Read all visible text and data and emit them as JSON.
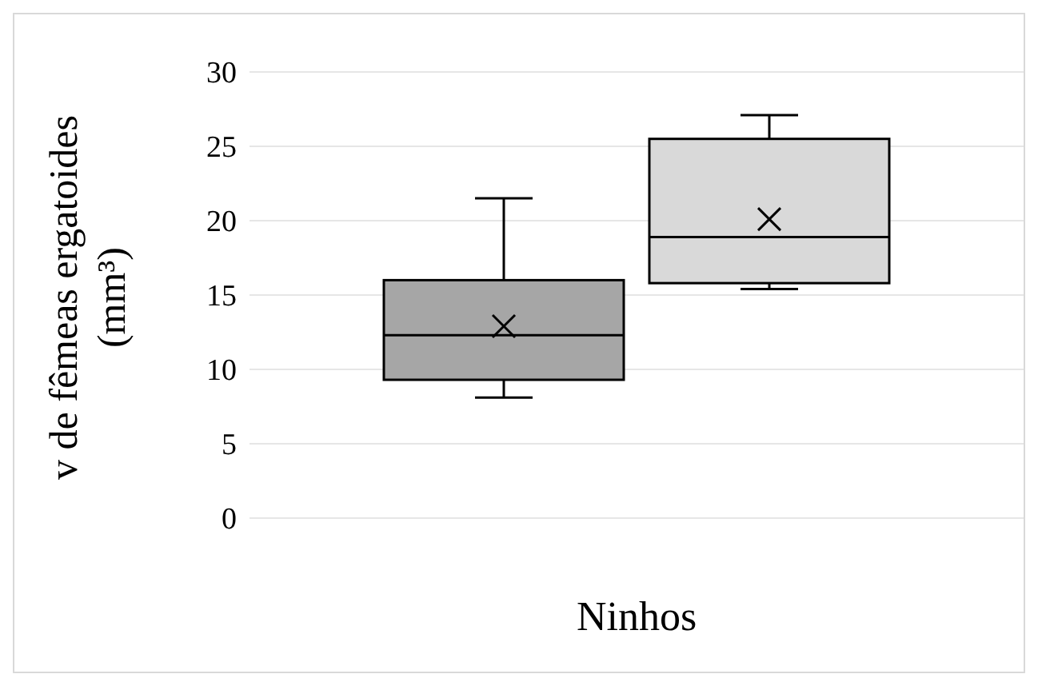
{
  "chart_data": {
    "type": "box",
    "xlabel": "Ninhos",
    "ylabel": "v de fêmeas ergatoides (mm³)",
    "categories": [
      null,
      null
    ],
    "colors": [
      "#a6a6a6",
      "#d9d9d9"
    ],
    "boxes": [
      {
        "low": 8.1,
        "q1": 9.3,
        "median": 12.3,
        "q3": 16,
        "high": 21.5,
        "mean": 12.9
      },
      {
        "low": 15.4,
        "q1": 15.8,
        "median": 18.9,
        "q3": 25.5,
        "high": 27.1,
        "mean": 20.1
      }
    ],
    "ylim": [
      0,
      30
    ],
    "yticks": [
      0,
      5,
      10,
      15,
      20,
      25,
      30
    ],
    "grid": "y"
  }
}
